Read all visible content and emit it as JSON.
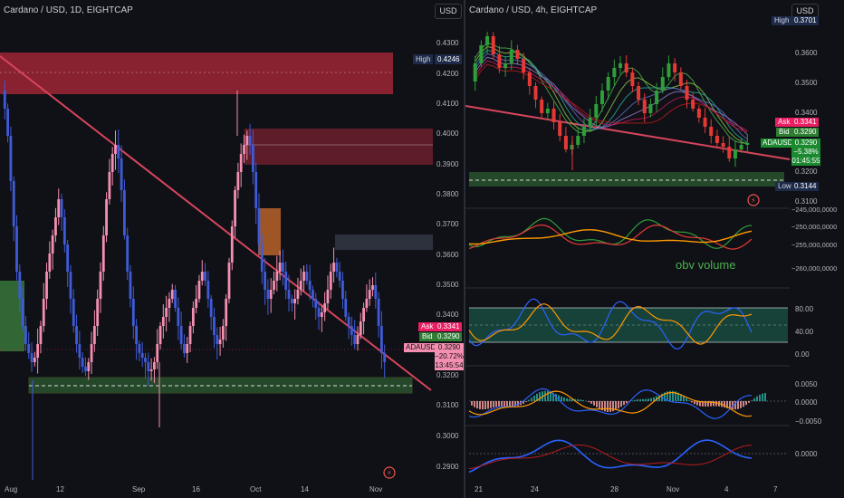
{
  "left": {
    "title": "Cardano / USD, 1D, EIGHTCAP",
    "currency": "USD",
    "y_ticks": [
      "0.4300",
      "0.4200",
      "0.4100",
      "0.4000",
      "0.3900",
      "0.3800",
      "0.3700",
      "0.3600",
      "0.3500",
      "0.3400",
      "0.3200",
      "0.3100",
      "0.3000",
      "0.2900"
    ],
    "x_ticks": [
      "Aug",
      "12",
      "Sep",
      "16",
      "Oct",
      "14",
      "Nov"
    ],
    "high_label": "High",
    "high_value": "0.4246",
    "ask_label": "Ask",
    "ask_value": "0.3341",
    "bid_label": "Bid",
    "bid_value": "0.3290",
    "symbol": "ADAUSD",
    "last_price": "0.3290",
    "change": "−20.72%",
    "countdown": "13:45:54"
  },
  "right": {
    "title": "Cardano / USD, 4h, EIGHTCAP",
    "currency": "USD",
    "high_label": "High",
    "high_value": "0.3701",
    "y_ticks": [
      "0.3600",
      "0.3500",
      "0.3400",
      "0.3200",
      "0.3100"
    ],
    "ask_label": "Ask",
    "ask_value": "0.3341",
    "bid_label": "Bid",
    "bid_value": "0.3290",
    "symbol": "ADAUSD",
    "last_price": "0.3290",
    "change": "−5.38%",
    "countdown": "01:45:55",
    "low_label": "Low",
    "low_value": "0.3144",
    "obv_ticks": [
      "−245,000,0000",
      "−250,000,0000",
      "−255,000,0000",
      "−260,000,0000"
    ],
    "obv_label": "obv volume",
    "rsi_ticks": [
      "80.00",
      "40.00",
      "0.00"
    ],
    "macd_ticks": [
      "0.0050",
      "0.0000",
      "−0.0050"
    ],
    "osc_ticks": [
      "0.0000"
    ],
    "x_ticks": [
      "21",
      "24",
      "28",
      "Nov",
      "4",
      "7"
    ]
  },
  "colors": {
    "bull": "#f48fb1",
    "bear": "#3f5bd8",
    "trendline": "#d6455d",
    "green_zone": "#4caf50",
    "red_zone": "#b2283a"
  }
}
